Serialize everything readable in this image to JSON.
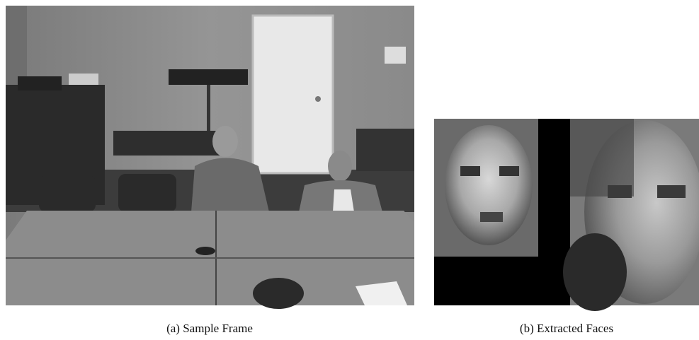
{
  "figure": {
    "subfigures": [
      {
        "caption": "(a) Sample Frame"
      },
      {
        "caption": "(b) Extracted Faces"
      }
    ]
  }
}
